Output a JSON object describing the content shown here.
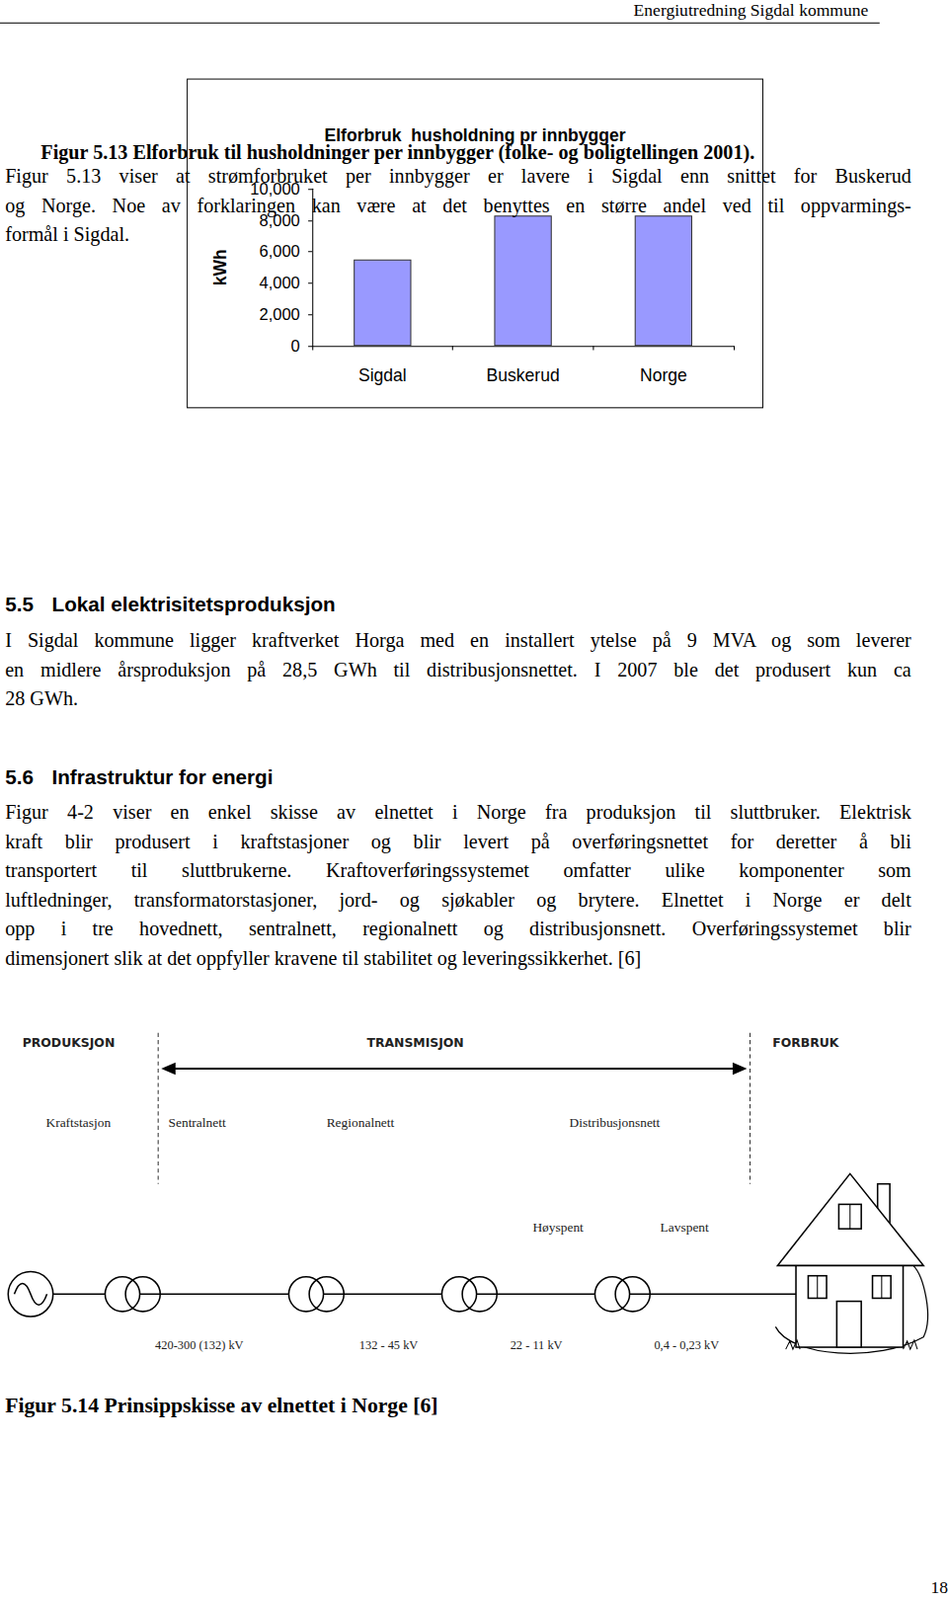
{
  "header": {
    "title": "Energiutredning Sigdal kommune"
  },
  "chart_data": {
    "type": "bar",
    "title": "Elforbruk  husholdning pr innbygger",
    "y_label": "kWh",
    "categories": [
      "Sigdal",
      "Buskerud",
      "Norge"
    ],
    "values": [
      5500,
      8300,
      8300
    ],
    "color": "#9999ff",
    "ylim": [
      0,
      10000
    ],
    "yticks": [
      0,
      2000,
      4000,
      6000,
      8000,
      10000
    ],
    "grid": false
  },
  "figure_5_13": {
    "caption": "Figur 5.13 Elforbruk til husholdninger per innbygger (folke- og boligtellingen 2001)."
  },
  "paragraph_1": {
    "lines": [
      "Figur 5.13  viser at strømforbruket per innbygger er lavere i Sigdal enn snittet for Buskerud",
      "og Norge. Noe av forklaringen kan være at det benyttes en større andel ved til oppvarmings-",
      "formål i Sigdal."
    ]
  },
  "section_5_5": {
    "number": "5.5",
    "heading": "Lokal elektrisitetsproduksjon",
    "lines": [
      "I Sigdal kommune ligger kraftverket Horga med en installert ytelse på 9 MVA og som leverer",
      "en midlere årsproduksjon på 28,5 GWh til distribusjonsnettet. I 2007 ble det produsert kun ca",
      "28 GWh."
    ]
  },
  "section_5_6": {
    "number": "5.6",
    "heading": "Infrastruktur for energi",
    "lines": [
      "Figur 4-2 viser en enkel skisse av elnettet i Norge fra produksjon til sluttbruker. Elektrisk",
      "kraft blir produsert i kraftstasjoner og blir levert på overføringsnettet for deretter å bli",
      "transportert til sluttbrukerne. Kraftoverføringssystemet omfatter ulike komponenter som",
      "luftledninger, transformatorstasjoner, jord- og sjøkabler og brytere. Elnettet i Norge er delt",
      "opp i tre hovednett, sentralnett, regionalnett og distribusjonsnett. Overføringssystemet blir",
      "dimensjonert slik at det oppfyller kravene til stabilitet og leveringssikkerhet. [6]"
    ]
  },
  "diagram": {
    "zones": [
      "PRODUKSJON",
      "TRANSMISJON",
      "FORBRUK"
    ],
    "nodes": [
      "Kraftstasjon",
      "Sentralnett",
      "Regionalnett",
      "Distribusjonsnett"
    ],
    "sublabels": [
      "Høyspent",
      "Lavspent"
    ],
    "voltages": [
      "420-300 (132) kV",
      "132 - 45 kV",
      "22 - 11 kV",
      "0,4 - 0,23 kV"
    ]
  },
  "figure_5_14": {
    "caption": "Figur 5.14 Prinsippskisse av elnettet i Norge [6]"
  },
  "page_number": "18"
}
